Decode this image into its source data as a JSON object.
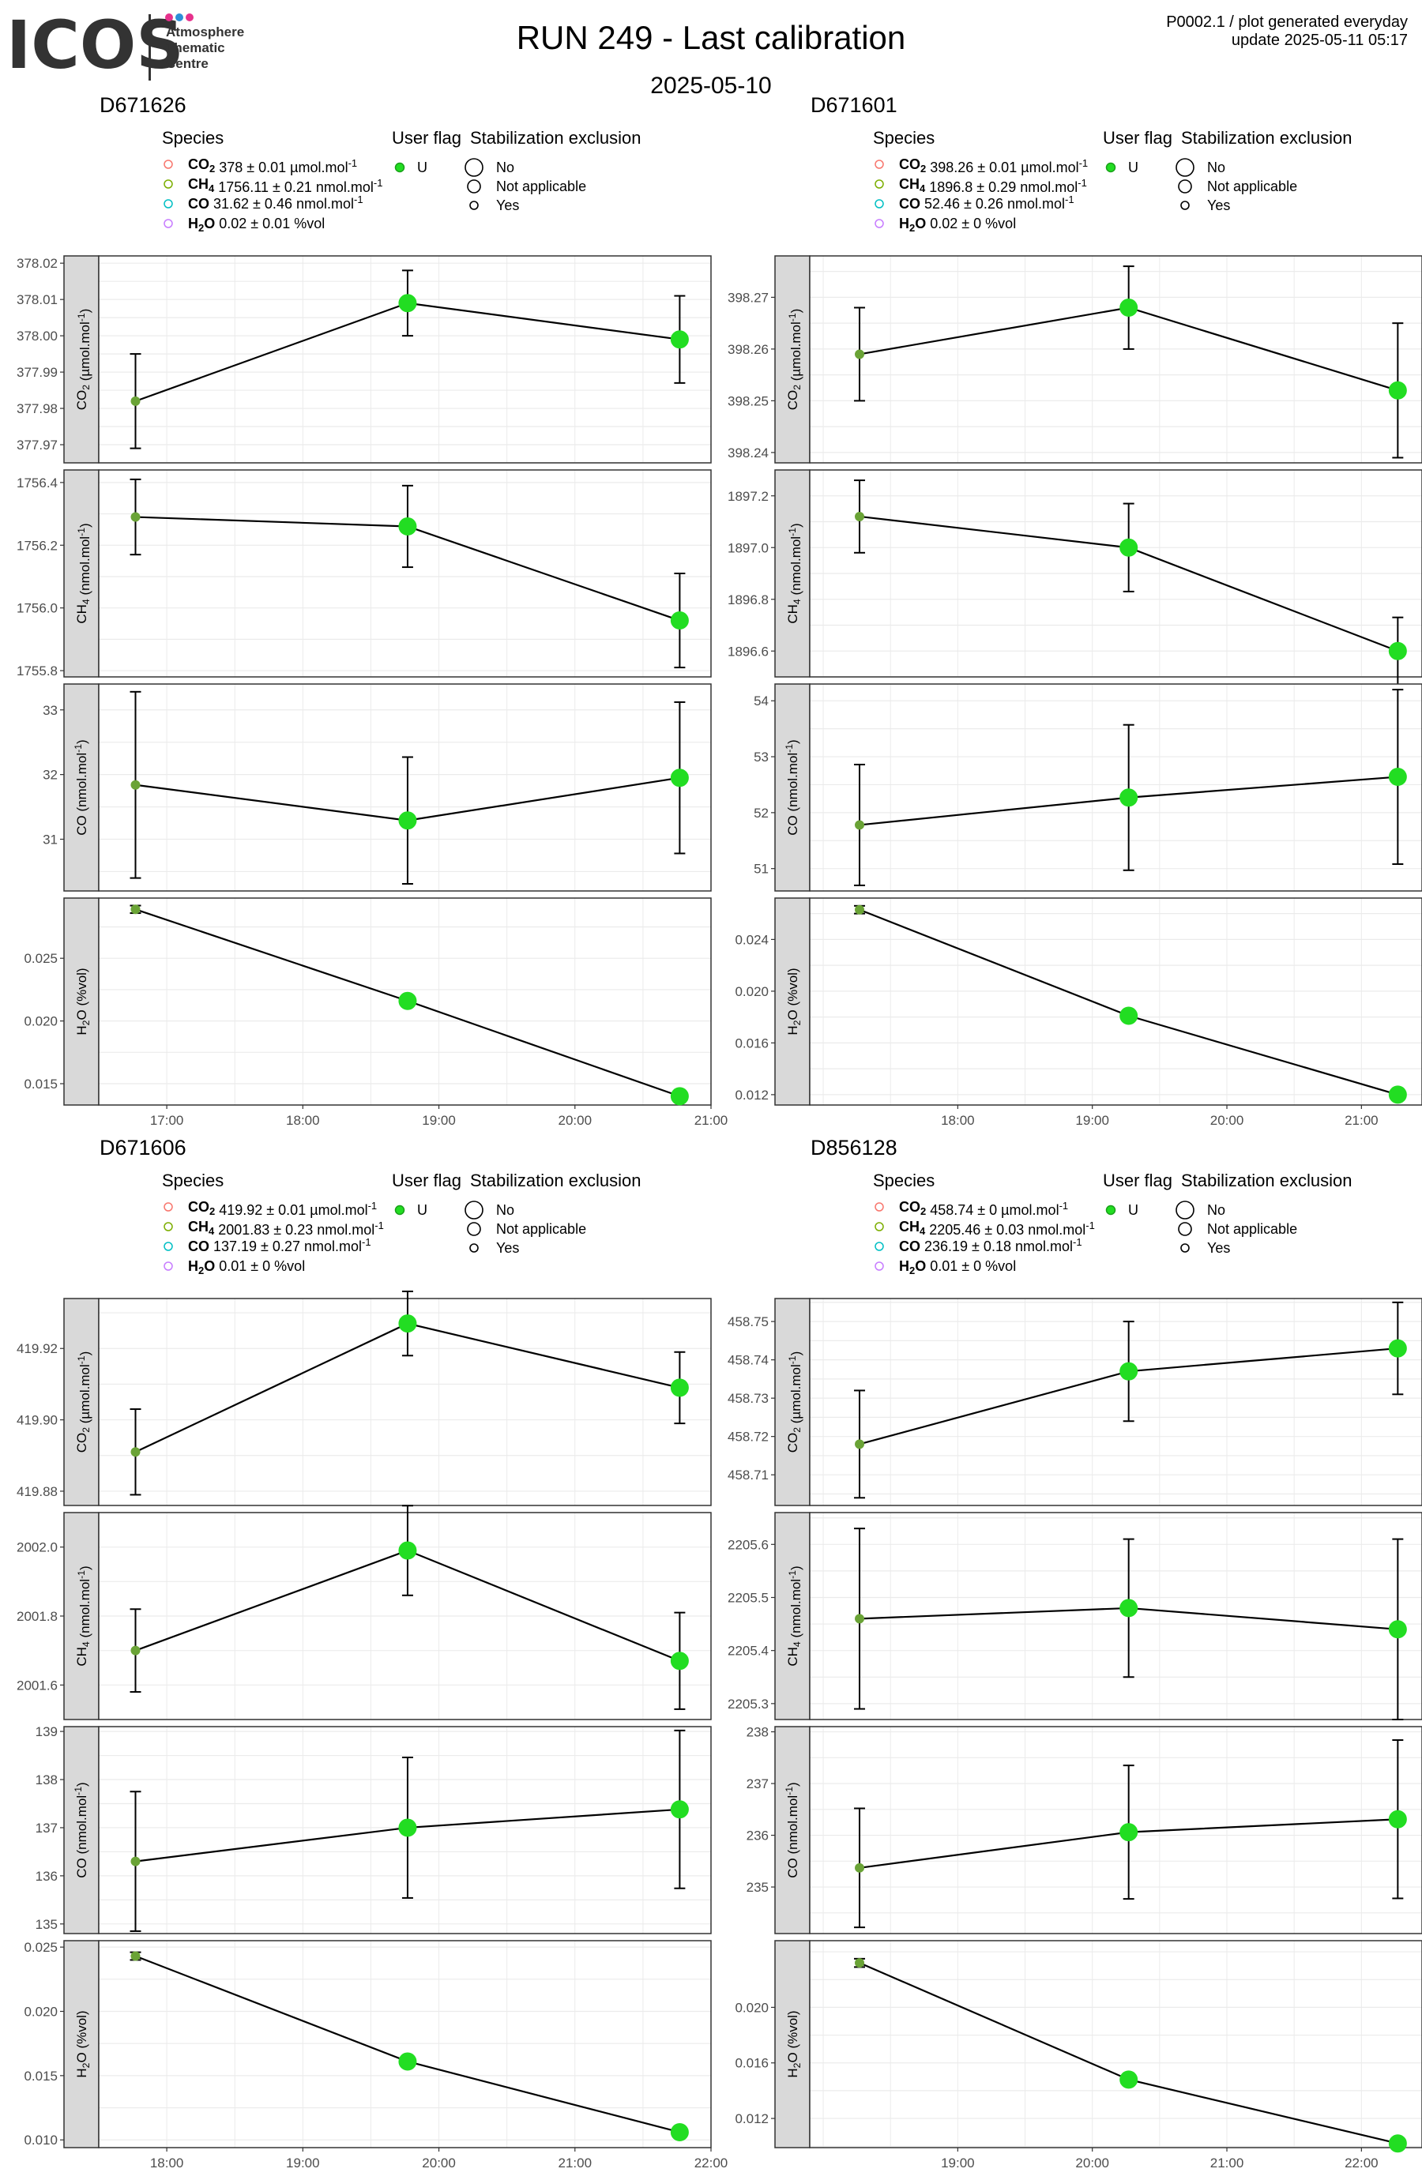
{
  "header": {
    "logo_text": "ICOS",
    "logo_sub": [
      "Atmosphere",
      "Thematic",
      "Centre"
    ],
    "logo_dot_colors": [
      "#e6318c",
      "#2d8fd8",
      "#e6318c"
    ],
    "title": "RUN 249 - Last calibration",
    "subtitle": "2025-05-10",
    "meta_line1": "P0002.1 / plot generated everyday",
    "meta_line2": "update  2025-05-11 05:17"
  },
  "legend_titles": {
    "species": "Species",
    "user_flag": "User flag",
    "stabilization": "Stabilization exclusion",
    "flag_value": "U",
    "stab_values": [
      "No",
      "Not applicable",
      "Yes"
    ]
  },
  "colors": {
    "point_fill": "#22dd22",
    "point_edge": "#1aa01a",
    "first_point": "#6aa336",
    "line": "#000000",
    "strip": "#d9d9d9",
    "grid": "#ebebeb",
    "species_colors": [
      "#f8766d",
      "#7cae00",
      "#00bfc4",
      "#c77cff"
    ]
  },
  "chart_data": [
    {
      "type": "line",
      "title": "D671626",
      "x_ticks": [
        "17:00",
        "18:00",
        "19:00",
        "20:00",
        "21:00"
      ],
      "x_hours": [
        16.77,
        18.77,
        20.77
      ],
      "xlim": [
        16.5,
        21.0
      ],
      "x_tick_values": [
        17,
        18,
        19,
        20,
        21
      ],
      "species_legend": [
        {
          "name": "CO",
          "sub": "2",
          "text": " 378 ± 0.01 µmol.mol",
          "sup": "-1"
        },
        {
          "name": "CH",
          "sub": "4",
          "text": " 1756.11 ± 0.21 nmol.mol",
          "sup": "-1"
        },
        {
          "name": "CO",
          "sub": "",
          "text": " 31.62 ± 0.46 nmol.mol",
          "sup": "-1"
        },
        {
          "name": "H",
          "sub": "2",
          "name2": "O",
          "text": " 0.02 ± 0.01 %vol",
          "sup": ""
        }
      ],
      "panels": [
        {
          "ylabel": "CO2 (µmol.mol-1)",
          "ylim": [
            377.965,
            378.022
          ],
          "yticks": [
            377.97,
            377.98,
            377.99,
            378.0,
            378.01,
            378.02
          ],
          "ytick_labels": [
            "377.97",
            "377.98",
            "377.99",
            "378.00",
            "378.01",
            "378.02"
          ],
          "values": [
            377.982,
            378.009,
            377.999
          ],
          "errors": [
            0.013,
            0.009,
            0.012
          ]
        },
        {
          "ylabel": "CH4 (nmol.mol-1)",
          "ylim": [
            1755.78,
            1756.44
          ],
          "yticks": [
            1755.8,
            1756.0,
            1756.2,
            1756.4
          ],
          "ytick_labels": [
            "1755.8",
            "1756.0",
            "1756.2",
            "1756.4"
          ],
          "values": [
            1756.29,
            1756.26,
            1755.96
          ],
          "errors": [
            0.12,
            0.13,
            0.15
          ]
        },
        {
          "ylabel": "CO (nmol.mol-1)",
          "ylim": [
            30.2,
            33.4
          ],
          "yticks": [
            31,
            32,
            33
          ],
          "ytick_labels": [
            "31",
            "32",
            "33"
          ],
          "values": [
            31.84,
            31.29,
            31.95
          ],
          "errors": [
            1.44,
            0.98,
            1.17
          ]
        },
        {
          "ylabel": "H2O (%vol)",
          "ylim": [
            0.0133,
            0.0298
          ],
          "yticks": [
            0.015,
            0.02,
            0.025
          ],
          "ytick_labels": [
            "0.015",
            "0.020",
            "0.025"
          ],
          "values": [
            0.0289,
            0.0216,
            0.014
          ],
          "errors": [
            0.0003,
            0.0004,
            0.0003
          ]
        }
      ]
    },
    {
      "type": "line",
      "title": "D671601",
      "x_ticks": [
        "18:00",
        "19:00",
        "20:00",
        "21:00"
      ],
      "x_hours": [
        17.27,
        19.27,
        21.27
      ],
      "xlim": [
        16.9,
        21.45
      ],
      "x_tick_values": [
        18,
        19,
        20,
        21
      ],
      "species_legend": [
        {
          "name": "CO",
          "sub": "2",
          "text": " 398.26 ± 0.01 µmol.mol",
          "sup": "-1"
        },
        {
          "name": "CH",
          "sub": "4",
          "text": " 1896.8 ± 0.29 nmol.mol",
          "sup": "-1"
        },
        {
          "name": "CO",
          "sub": "",
          "text": " 52.46 ± 0.26 nmol.mol",
          "sup": "-1"
        },
        {
          "name": "H",
          "sub": "2",
          "name2": "O",
          "text": " 0.02 ± 0 %vol",
          "sup": ""
        }
      ],
      "panels": [
        {
          "ylabel": "CO2 (µmol.mol-1)",
          "ylim": [
            398.238,
            398.278
          ],
          "yticks": [
            398.24,
            398.25,
            398.26,
            398.27
          ],
          "ytick_labels": [
            "398.24",
            "398.25",
            "398.26",
            "398.27"
          ],
          "values": [
            398.259,
            398.268,
            398.252
          ],
          "errors": [
            0.009,
            0.008,
            0.013
          ]
        },
        {
          "ylabel": "CH4 (nmol.mol-1)",
          "ylim": [
            1896.5,
            1897.3
          ],
          "yticks": [
            1896.6,
            1896.8,
            1897.0,
            1897.2
          ],
          "ytick_labels": [
            "1896.6",
            "1896.8",
            "1897.0",
            "1897.2"
          ],
          "values": [
            1897.12,
            1897.0,
            1896.6
          ],
          "errors": [
            0.14,
            0.17,
            0.13
          ]
        },
        {
          "ylabel": "CO (nmol.mol-1)",
          "ylim": [
            50.6,
            54.3
          ],
          "yticks": [
            51,
            52,
            53,
            54
          ],
          "ytick_labels": [
            "51",
            "52",
            "53",
            "54"
          ],
          "values": [
            51.78,
            52.27,
            52.64
          ],
          "errors": [
            1.08,
            1.3,
            1.56
          ]
        },
        {
          "ylabel": "H2O (%vol)",
          "ylim": [
            0.0112,
            0.0272
          ],
          "yticks": [
            0.012,
            0.016,
            0.02,
            0.024
          ],
          "ytick_labels": [
            "0.012",
            "0.016",
            "0.020",
            "0.024"
          ],
          "values": [
            0.0263,
            0.0181,
            0.012
          ],
          "errors": [
            0.0003,
            0.0004,
            0.0003
          ]
        }
      ]
    },
    {
      "type": "line",
      "title": "D671606",
      "x_ticks": [
        "18:00",
        "19:00",
        "20:00",
        "21:00",
        "22:00"
      ],
      "x_hours": [
        17.77,
        19.77,
        21.77
      ],
      "xlim": [
        17.5,
        22.0
      ],
      "x_tick_values": [
        18,
        19,
        20,
        21,
        22
      ],
      "species_legend": [
        {
          "name": "CO",
          "sub": "2",
          "text": " 419.92 ± 0.01 µmol.mol",
          "sup": "-1"
        },
        {
          "name": "CH",
          "sub": "4",
          "text": " 2001.83 ± 0.23 nmol.mol",
          "sup": "-1"
        },
        {
          "name": "CO",
          "sub": "",
          "text": " 137.19 ± 0.27 nmol.mol",
          "sup": "-1"
        },
        {
          "name": "H",
          "sub": "2",
          "name2": "O",
          "text": " 0.01 ± 0 %vol",
          "sup": ""
        }
      ],
      "panels": [
        {
          "ylabel": "CO2 (µmol.mol-1)",
          "ylim": [
            419.876,
            419.934
          ],
          "yticks": [
            419.88,
            419.9,
            419.92
          ],
          "ytick_labels": [
            "419.88",
            "419.90",
            "419.92"
          ],
          "values": [
            419.891,
            419.927,
            419.909
          ],
          "errors": [
            0.012,
            0.009,
            0.01
          ]
        },
        {
          "ylabel": "CH4 (nmol.mol-1)",
          "ylim": [
            2001.5,
            2002.1
          ],
          "yticks": [
            2001.6,
            2001.8,
            2002.0
          ],
          "ytick_labels": [
            "2001.6",
            "2001.8",
            "2002.0"
          ],
          "values": [
            2001.7,
            2001.99,
            2001.67
          ],
          "errors": [
            0.12,
            0.13,
            0.14
          ]
        },
        {
          "ylabel": "CO (nmol.mol-1)",
          "ylim": [
            134.8,
            139.1
          ],
          "yticks": [
            135,
            136,
            137,
            138,
            139
          ],
          "ytick_labels": [
            "135",
            "136",
            "137",
            "138",
            "139"
          ],
          "values": [
            136.3,
            137.0,
            137.38
          ],
          "errors": [
            1.45,
            1.46,
            1.64
          ]
        },
        {
          "ylabel": "H2O (%vol)",
          "ylim": [
            0.0094,
            0.0255
          ],
          "yticks": [
            0.01,
            0.015,
            0.02,
            0.025
          ],
          "ytick_labels": [
            "0.010",
            "0.015",
            "0.020",
            "0.025"
          ],
          "values": [
            0.0243,
            0.0161,
            0.0106
          ],
          "errors": [
            0.0003,
            0.0003,
            0.0003
          ]
        }
      ]
    },
    {
      "type": "line",
      "title": "D856128",
      "x_ticks": [
        "19:00",
        "20:00",
        "21:00",
        "22:00"
      ],
      "x_hours": [
        18.27,
        20.27,
        22.27
      ],
      "xlim": [
        17.9,
        22.45
      ],
      "x_tick_values": [
        19,
        20,
        21,
        22
      ],
      "species_legend": [
        {
          "name": "CO",
          "sub": "2",
          "text": " 458.74 ± 0 µmol.mol",
          "sup": "-1"
        },
        {
          "name": "CH",
          "sub": "4",
          "text": " 2205.46 ± 0.03 nmol.mol",
          "sup": "-1"
        },
        {
          "name": "CO",
          "sub": "",
          "text": " 236.19 ± 0.18 nmol.mol",
          "sup": "-1"
        },
        {
          "name": "H",
          "sub": "2",
          "name2": "O",
          "text": " 0.01 ± 0 %vol",
          "sup": ""
        }
      ],
      "panels": [
        {
          "ylabel": "CO2 (µmol.mol-1)",
          "ylim": [
            458.702,
            458.756
          ],
          "yticks": [
            458.71,
            458.72,
            458.73,
            458.74,
            458.75
          ],
          "ytick_labels": [
            "458.71",
            "458.72",
            "458.73",
            "458.74",
            "458.75"
          ],
          "values": [
            458.718,
            458.737,
            458.743
          ],
          "errors": [
            0.014,
            0.013,
            0.012
          ]
        },
        {
          "ylabel": "CH4 (nmol.mol-1)",
          "ylim": [
            2205.27,
            2205.66
          ],
          "yticks": [
            2205.3,
            2205.4,
            2205.5,
            2205.6
          ],
          "ytick_labels": [
            "2205.3",
            "2205.4",
            "2205.5",
            "2205.6"
          ],
          "values": [
            2205.46,
            2205.48,
            2205.44
          ],
          "errors": [
            0.17,
            0.13,
            0.17
          ]
        },
        {
          "ylabel": "CO (nmol.mol-1)",
          "ylim": [
            234.1,
            238.1
          ],
          "yticks": [
            235,
            236,
            237,
            238
          ],
          "ytick_labels": [
            "235",
            "236",
            "237",
            "238"
          ],
          "values": [
            235.37,
            236.06,
            236.31
          ],
          "errors": [
            1.15,
            1.29,
            1.53
          ]
        },
        {
          "ylabel": "H2O (%vol)",
          "ylim": [
            0.0099,
            0.0248
          ],
          "yticks": [
            0.012,
            0.016,
            0.02
          ],
          "ytick_labels": [
            "0.012",
            "0.016",
            "0.020"
          ],
          "values": [
            0.0232,
            0.0148,
            0.0102
          ],
          "errors": [
            0.0003,
            0.0002,
            0.0002
          ]
        }
      ]
    }
  ]
}
